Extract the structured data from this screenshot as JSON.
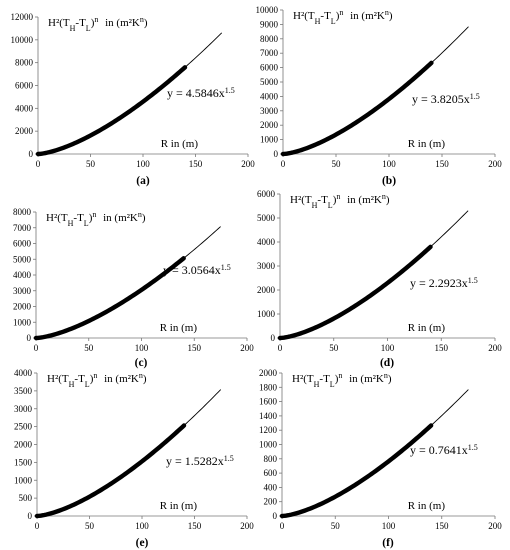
{
  "chart_data": [
    {
      "type": "line",
      "panel_label": "(a)",
      "ylabel_main": "H²(T",
      "ylabel_sub1": "H",
      "ylabel_mid": "-T",
      "ylabel_sub2": "L",
      "ylabel_sup": "n",
      "ylabel_units_pre": "in  (m²K",
      "ylabel_units_sup": "n",
      "ylabel_units_post": ")",
      "xlabel": "R in (m)",
      "equation_pre": "y = 4.5846x",
      "equation_exp": "1.5",
      "coefficient": 4.5846,
      "exponent": 1.5,
      "xlim": [
        0,
        200
      ],
      "ylim": [
        0,
        12000
      ],
      "xticks": [
        "0",
        "50",
        "100",
        "150",
        "200"
      ],
      "yticks": [
        "0",
        "2000",
        "4000",
        "6000",
        "8000",
        "10000",
        "12000"
      ],
      "ytick_step": 2000,
      "data_x_range": [
        0,
        140
      ],
      "fit_x_range": [
        0,
        175
      ]
    },
    {
      "type": "line",
      "panel_label": "(b)",
      "ylabel_main": "H²(T",
      "ylabel_sub1": "H",
      "ylabel_mid": "-T",
      "ylabel_sub2": "L",
      "ylabel_sup": "n",
      "ylabel_units_pre": "in  (m²K",
      "ylabel_units_sup": "n",
      "ylabel_units_post": ")",
      "xlabel": "R in (m)",
      "equation_pre": "y = 3.8205x",
      "equation_exp": "1.5",
      "coefficient": 3.8205,
      "exponent": 1.5,
      "xlim": [
        0,
        200
      ],
      "ylim": [
        0,
        10000
      ],
      "xticks": [
        "0",
        "50",
        "100",
        "150",
        "200"
      ],
      "yticks": [
        "0",
        "1000",
        "2000",
        "3000",
        "4000",
        "5000",
        "6000",
        "7000",
        "8000",
        "9000",
        "10000"
      ],
      "ytick_step": 1000,
      "data_x_range": [
        0,
        140
      ],
      "fit_x_range": [
        0,
        175
      ]
    },
    {
      "type": "line",
      "panel_label": "(c)",
      "ylabel_main": "H²(T",
      "ylabel_sub1": "H",
      "ylabel_mid": "-T",
      "ylabel_sub2": "L",
      "ylabel_sup": "n",
      "ylabel_units_pre": "in  (m²K",
      "ylabel_units_sup": "n",
      "ylabel_units_post": ")",
      "xlabel": "R in (m)",
      "equation_pre": "y = 3.0564x",
      "equation_exp": "1.5",
      "coefficient": 3.0564,
      "exponent": 1.5,
      "xlim": [
        0,
        200
      ],
      "ylim": [
        0,
        8000
      ],
      "xticks": [
        "0",
        "50",
        "100",
        "150",
        "200"
      ],
      "yticks": [
        "0",
        "1000",
        "2000",
        "3000",
        "4000",
        "5000",
        "6000",
        "7000",
        "8000"
      ],
      "ytick_step": 1000,
      "data_x_range": [
        0,
        140
      ],
      "fit_x_range": [
        0,
        175
      ]
    },
    {
      "type": "line",
      "panel_label": "(d)",
      "ylabel_main": "H²(T",
      "ylabel_sub1": "H",
      "ylabel_mid": "-T",
      "ylabel_sub2": "L",
      "ylabel_sup": "n",
      "ylabel_units_pre": "in  (m²K",
      "ylabel_units_sup": "n",
      "ylabel_units_post": ")",
      "xlabel": "R in (m)",
      "equation_pre": "y = 2.2923x",
      "equation_exp": "1.5",
      "coefficient": 2.2923,
      "exponent": 1.5,
      "xlim": [
        0,
        200
      ],
      "ylim": [
        0,
        6000
      ],
      "xticks": [
        "0",
        "50",
        "100",
        "150",
        "200"
      ],
      "yticks": [
        "0",
        "1000",
        "2000",
        "3000",
        "4000",
        "5000",
        "6000"
      ],
      "ytick_step": 1000,
      "data_x_range": [
        0,
        140
      ],
      "fit_x_range": [
        0,
        175
      ]
    },
    {
      "type": "line",
      "panel_label": "(e)",
      "ylabel_main": "H²(T",
      "ylabel_sub1": "H",
      "ylabel_mid": "-T",
      "ylabel_sub2": "L",
      "ylabel_sup": "n",
      "ylabel_units_pre": "in  (m²K",
      "ylabel_units_sup": "n",
      "ylabel_units_post": ")",
      "xlabel": "R in (m)",
      "equation_pre": "y = 1.5282x",
      "equation_exp": "1.5",
      "coefficient": 1.5282,
      "exponent": 1.5,
      "xlim": [
        0,
        200
      ],
      "ylim": [
        0,
        4000
      ],
      "xticks": [
        "0",
        "50",
        "100",
        "150",
        "200"
      ],
      "yticks": [
        "0",
        "500",
        "1000",
        "1500",
        "2000",
        "2500",
        "3000",
        "3500",
        "4000"
      ],
      "ytick_step": 500,
      "data_x_range": [
        0,
        140
      ],
      "fit_x_range": [
        0,
        175
      ]
    },
    {
      "type": "line",
      "panel_label": "(f)",
      "ylabel_main": "H²(T",
      "ylabel_sub1": "H",
      "ylabel_mid": "-T",
      "ylabel_sub2": "L",
      "ylabel_sup": "n",
      "ylabel_units_pre": "in  (m²K",
      "ylabel_units_sup": "n",
      "ylabel_units_post": ")",
      "xlabel": "R in (m)",
      "equation_pre": "y = 0.7641x",
      "equation_exp": "1.5",
      "coefficient": 0.7641,
      "exponent": 1.5,
      "xlim": [
        0,
        200
      ],
      "ylim": [
        0,
        2000
      ],
      "xticks": [
        "0",
        "50",
        "100",
        "150",
        "200"
      ],
      "yticks": [
        "0",
        "200",
        "400",
        "600",
        "800",
        "1000",
        "1200",
        "1400",
        "1600",
        "1800",
        "2000"
      ],
      "ytick_step": 200,
      "data_x_range": [
        0,
        140
      ],
      "fit_x_range": [
        0,
        175
      ]
    }
  ]
}
